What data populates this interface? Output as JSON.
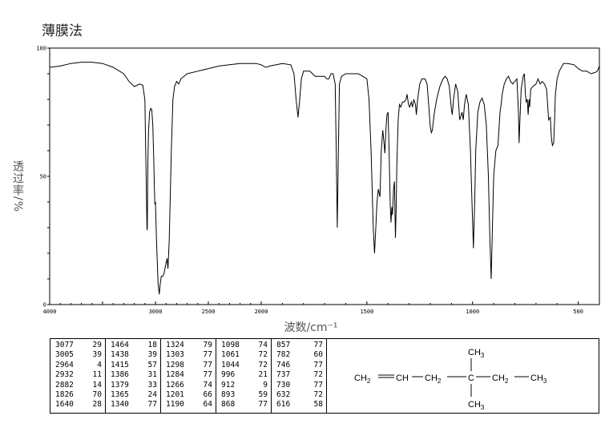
{
  "title": "薄膜法",
  "chart_data": {
    "type": "line",
    "ylabel": "透过率/%",
    "xlabel": "波数/cm⁻¹",
    "xlim": [
      4000,
      400
    ],
    "ylim": [
      0,
      100
    ],
    "x_ticks": [
      "4000",
      "3000",
      "2500",
      "2000",
      "1500",
      "1000",
      "500"
    ],
    "y_ticks": [
      "0",
      "50",
      "100"
    ],
    "series": [
      {
        "points": [
          [
            4000,
            92.5
          ],
          [
            3900,
            93
          ],
          [
            3800,
            94
          ],
          [
            3700,
            94.5
          ],
          [
            3600,
            94.5
          ],
          [
            3500,
            94
          ],
          [
            3400,
            92.5
          ],
          [
            3300,
            90
          ],
          [
            3250,
            87
          ],
          [
            3200,
            85
          ],
          [
            3150,
            86
          ],
          [
            3120,
            85.5
          ],
          [
            3100,
            80
          ],
          [
            3090,
            55
          ],
          [
            3080,
            30
          ],
          [
            3077,
            29
          ],
          [
            3072,
            55
          ],
          [
            3065,
            68
          ],
          [
            3055,
            75
          ],
          [
            3045,
            76.5
          ],
          [
            3035,
            76
          ],
          [
            3025,
            70
          ],
          [
            3015,
            55
          ],
          [
            3010,
            45
          ],
          [
            3005,
            39
          ],
          [
            3000,
            40
          ],
          [
            2990,
            25
          ],
          [
            2975,
            8
          ],
          [
            2964,
            4
          ],
          [
            2955,
            8
          ],
          [
            2945,
            11
          ],
          [
            2932,
            11
          ],
          [
            2920,
            12
          ],
          [
            2905,
            15
          ],
          [
            2890,
            18
          ],
          [
            2882,
            14
          ],
          [
            2870,
            25
          ],
          [
            2850,
            60
          ],
          [
            2835,
            80
          ],
          [
            2820,
            85
          ],
          [
            2800,
            87
          ],
          [
            2780,
            86
          ],
          [
            2760,
            88
          ],
          [
            2730,
            89
          ],
          [
            2700,
            90
          ],
          [
            2600,
            91
          ],
          [
            2500,
            92
          ],
          [
            2400,
            93
          ],
          [
            2300,
            93.5
          ],
          [
            2200,
            94
          ],
          [
            2100,
            94
          ],
          [
            2050,
            94
          ],
          [
            2000,
            93.5
          ],
          [
            1980,
            92.5
          ],
          [
            1960,
            93
          ],
          [
            1900,
            94
          ],
          [
            1860,
            93.5
          ],
          [
            1845,
            90
          ],
          [
            1835,
            80
          ],
          [
            1826,
            73
          ],
          [
            1818,
            80
          ],
          [
            1810,
            88
          ],
          [
            1800,
            91
          ],
          [
            1770,
            91
          ],
          [
            1745,
            89
          ],
          [
            1720,
            89
          ],
          [
            1700,
            89
          ],
          [
            1690,
            88
          ],
          [
            1680,
            88
          ],
          [
            1670,
            90
          ],
          [
            1660,
            90
          ],
          [
            1650,
            86
          ],
          [
            1645,
            60
          ],
          [
            1640,
            30
          ],
          [
            1635,
            60
          ],
          [
            1630,
            86
          ],
          [
            1620,
            89
          ],
          [
            1600,
            90
          ],
          [
            1560,
            90
          ],
          [
            1540,
            90
          ],
          [
            1520,
            89
          ],
          [
            1500,
            88
          ],
          [
            1490,
            80
          ],
          [
            1480,
            60
          ],
          [
            1470,
            30
          ],
          [
            1464,
            20
          ],
          [
            1458,
            30
          ],
          [
            1452,
            40
          ],
          [
            1446,
            45
          ],
          [
            1438,
            42
          ],
          [
            1432,
            60
          ],
          [
            1425,
            68
          ],
          [
            1418,
            62
          ],
          [
            1415,
            59
          ],
          [
            1410,
            68
          ],
          [
            1405,
            74
          ],
          [
            1400,
            75
          ],
          [
            1395,
            60
          ],
          [
            1390,
            40
          ],
          [
            1386,
            32
          ],
          [
            1382,
            38
          ],
          [
            1379,
            35
          ],
          [
            1374,
            45
          ],
          [
            1370,
            48
          ],
          [
            1368,
            40
          ],
          [
            1365,
            26
          ],
          [
            1362,
            36
          ],
          [
            1358,
            55
          ],
          [
            1352,
            72
          ],
          [
            1346,
            78
          ],
          [
            1340,
            77
          ],
          [
            1332,
            79
          ],
          [
            1324,
            79
          ],
          [
            1315,
            80
          ],
          [
            1310,
            82
          ],
          [
            1303,
            78
          ],
          [
            1298,
            77
          ],
          [
            1290,
            79
          ],
          [
            1284,
            77
          ],
          [
            1278,
            80
          ],
          [
            1270,
            78
          ],
          [
            1266,
            74
          ],
          [
            1260,
            80
          ],
          [
            1250,
            86
          ],
          [
            1240,
            88
          ],
          [
            1225,
            88
          ],
          [
            1215,
            86
          ],
          [
            1205,
            75
          ],
          [
            1201,
            70
          ],
          [
            1195,
            67
          ],
          [
            1190,
            68
          ],
          [
            1182,
            74
          ],
          [
            1170,
            80
          ],
          [
            1155,
            85
          ],
          [
            1140,
            88
          ],
          [
            1130,
            89
          ],
          [
            1120,
            88
          ],
          [
            1110,
            85
          ],
          [
            1100,
            76
          ],
          [
            1096,
            74
          ],
          [
            1090,
            80
          ],
          [
            1080,
            86
          ],
          [
            1070,
            83
          ],
          [
            1061,
            72
          ],
          [
            1050,
            75
          ],
          [
            1044,
            72
          ],
          [
            1038,
            78
          ],
          [
            1030,
            82
          ],
          [
            1020,
            78
          ],
          [
            1010,
            60
          ],
          [
            1003,
            40
          ],
          [
            996,
            22
          ],
          [
            990,
            40
          ],
          [
            985,
            60
          ],
          [
            975,
            75
          ],
          [
            965,
            79
          ],
          [
            955,
            80.5
          ],
          [
            945,
            78
          ],
          [
            935,
            70
          ],
          [
            925,
            50
          ],
          [
            918,
            25
          ],
          [
            912,
            10
          ],
          [
            906,
            30
          ],
          [
            900,
            50
          ],
          [
            895,
            55
          ],
          [
            890,
            60
          ],
          [
            880,
            62
          ],
          [
            870,
            75
          ],
          [
            865,
            78
          ],
          [
            860,
            82
          ],
          [
            855,
            84
          ],
          [
            850,
            86
          ],
          [
            840,
            88
          ],
          [
            830,
            89
          ],
          [
            820,
            87
          ],
          [
            810,
            86
          ],
          [
            800,
            87
          ],
          [
            790,
            88
          ],
          [
            783,
            75
          ],
          [
            780,
            63
          ],
          [
            777,
            70
          ],
          [
            770,
            84
          ],
          [
            760,
            89
          ],
          [
            755,
            90
          ],
          [
            750,
            82
          ],
          [
            746,
            79
          ],
          [
            741,
            80
          ],
          [
            737,
            74
          ],
          [
            733,
            80
          ],
          [
            730,
            77
          ],
          [
            725,
            84
          ],
          [
            715,
            85
          ],
          [
            700,
            86
          ],
          [
            690,
            88
          ],
          [
            680,
            86
          ],
          [
            670,
            87
          ],
          [
            660,
            86
          ],
          [
            650,
            84
          ],
          [
            645,
            78
          ],
          [
            640,
            72
          ],
          [
            632,
            73
          ],
          [
            627,
            65
          ],
          [
            622,
            62
          ],
          [
            616,
            63
          ],
          [
            612,
            72
          ],
          [
            608,
            82
          ],
          [
            600,
            88
          ],
          [
            590,
            91
          ],
          [
            570,
            94
          ],
          [
            550,
            94
          ],
          [
            520,
            93.5
          ],
          [
            500,
            92
          ],
          [
            480,
            91
          ],
          [
            460,
            91
          ],
          [
            440,
            90
          ],
          [
            420,
            90.5
          ],
          [
            410,
            91
          ],
          [
            400,
            93
          ]
        ]
      }
    ]
  },
  "peak_table": [
    [
      [
        "3077",
        "29"
      ],
      [
        "3005",
        "39"
      ],
      [
        "2964",
        "4"
      ],
      [
        "2932",
        "11"
      ],
      [
        "2882",
        "14"
      ],
      [
        "1826",
        "70"
      ],
      [
        "1640",
        "28"
      ]
    ],
    [
      [
        "1464",
        "18"
      ],
      [
        "1438",
        "39"
      ],
      [
        "1415",
        "57"
      ],
      [
        "1386",
        "31"
      ],
      [
        "1379",
        "33"
      ],
      [
        "1365",
        "24"
      ],
      [
        "1340",
        "77"
      ]
    ],
    [
      [
        "1324",
        "79"
      ],
      [
        "1303",
        "77"
      ],
      [
        "1298",
        "77"
      ],
      [
        "1284",
        "77"
      ],
      [
        "1266",
        "74"
      ],
      [
        "1201",
        "66"
      ],
      [
        "1190",
        "64"
      ]
    ],
    [
      [
        "1098",
        "74"
      ],
      [
        "1061",
        "72"
      ],
      [
        "1044",
        "72"
      ],
      [
        "996",
        "21"
      ],
      [
        "912",
        "9"
      ],
      [
        "893",
        "59"
      ],
      [
        "868",
        "77"
      ]
    ],
    [
      [
        "857",
        "77"
      ],
      [
        "782",
        "60"
      ],
      [
        "746",
        "77"
      ],
      [
        "737",
        "72"
      ],
      [
        "730",
        "77"
      ],
      [
        "632",
        "72"
      ],
      [
        "616",
        "58"
      ]
    ]
  ],
  "structure": {
    "ch3_top": "CH",
    "ch3_bottom": "CH",
    "c_center": "C",
    "ch2_a": "CH",
    "ch": "CH",
    "ch2_b": "CH",
    "ch2_c": "CH",
    "ch3_end": "CH",
    "sub2": "2",
    "sub3": "3"
  }
}
